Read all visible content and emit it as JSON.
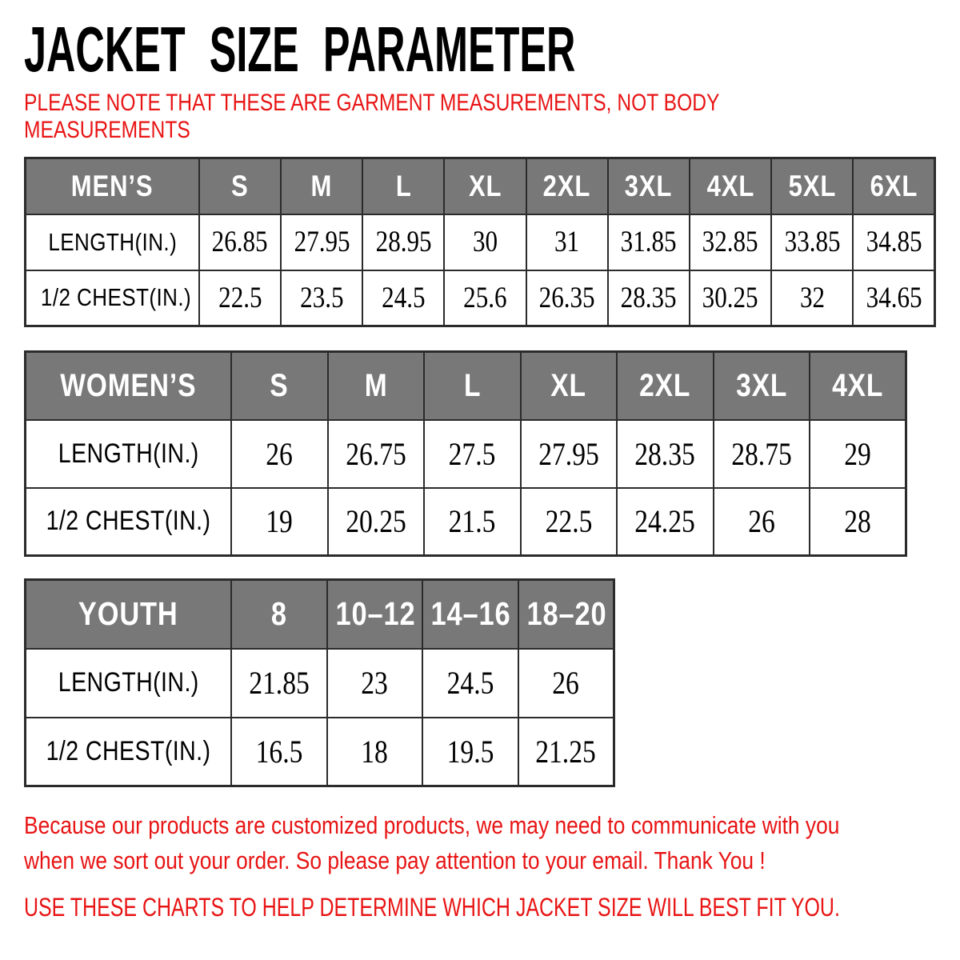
{
  "title": "JACKET SIZE PARAMETER",
  "note": {
    "line1": "PLEASE NOTE THAT THESE ARE GARMENT MEASUREMENTS, NOT BODY",
    "line2": "MEASUREMENTS"
  },
  "tables": {
    "mens": {
      "header": [
        "MEN’S",
        "S",
        "M",
        "L",
        "XL",
        "2XL",
        "3XL",
        "4XL",
        "5XL",
        "6XL"
      ],
      "rows": [
        {
          "label": "LENGTH(IN.)",
          "values": [
            "26.85",
            "27.95",
            "28.95",
            "30",
            "31",
            "31.85",
            "32.85",
            "33.85",
            "34.85"
          ]
        },
        {
          "label": "1/2 CHEST(IN.)",
          "values": [
            "22.5",
            "23.5",
            "24.5",
            "25.6",
            "26.35",
            "28.35",
            "30.25",
            "32",
            "34.65"
          ]
        }
      ]
    },
    "womens": {
      "header": [
        "WOMEN’S",
        "S",
        "M",
        "L",
        "XL",
        "2XL",
        "3XL",
        "4XL"
      ],
      "rows": [
        {
          "label": "LENGTH(IN.)",
          "values": [
            "26",
            "26.75",
            "27.5",
            "27.95",
            "28.35",
            "28.75",
            "29"
          ]
        },
        {
          "label": "1/2 CHEST(IN.)",
          "values": [
            "19",
            "20.25",
            "21.5",
            "22.5",
            "24.25",
            "26",
            "28"
          ]
        }
      ]
    },
    "youth": {
      "header": [
        "YOUTH",
        "8",
        "10–12",
        "14–16",
        "18–20"
      ],
      "rows": [
        {
          "label": "LENGTH(IN.)",
          "values": [
            "21.85",
            "23",
            "24.5",
            "26"
          ]
        },
        {
          "label": "1/2 CHEST(IN.)",
          "values": [
            "16.5",
            "18",
            "19.5",
            "21.25"
          ]
        }
      ]
    }
  },
  "footer": {
    "para_line1": "Because our products are customized products, we may need to communicate with you",
    "para_line2": "when we sort out your order. So please pay attention to your email. Thank You !",
    "caps": "USE THESE CHARTS TO HELP DETERMINE WHICH JACKET SIZE WILL BEST FIT YOU."
  },
  "colors": {
    "accent_red": "#e81414",
    "table_header_bg": "#787878",
    "table_header_text": "#ffffff",
    "table_border": "#2b2b2b",
    "title_text": "#000000"
  }
}
